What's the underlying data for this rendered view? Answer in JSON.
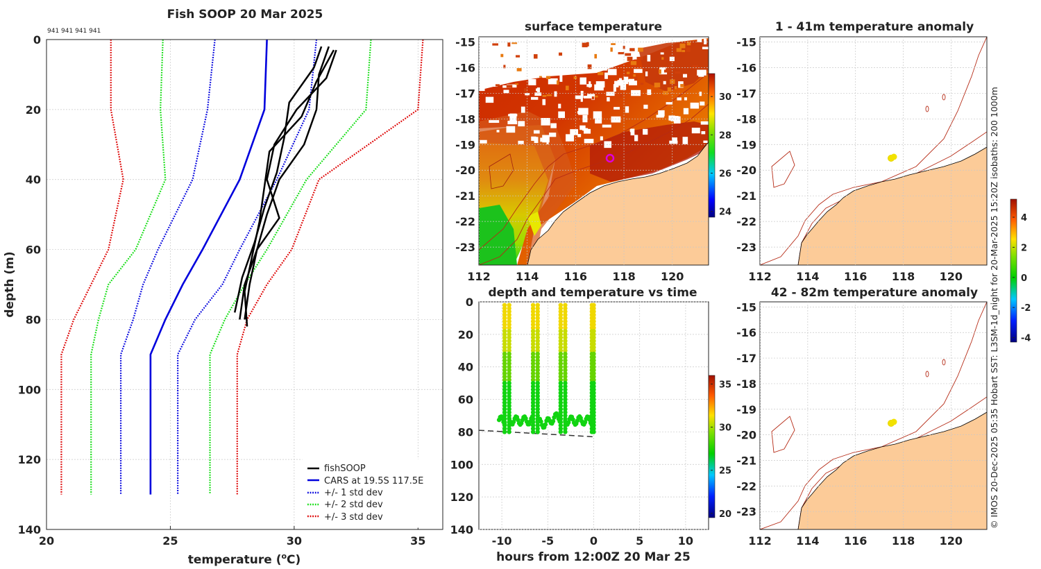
{
  "profile": {
    "title": "Fish SOOP 20 Mar 2025",
    "cast_ids": "941 941 941 941",
    "xlabel": "temperature (",
    "xlabel_sup": "o",
    "xlabel_unit": "C)",
    "ylabel": "depth (m)",
    "xticks": [
      "20",
      "25",
      "30",
      "35"
    ],
    "yticks": [
      "0",
      "20",
      "40",
      "60",
      "80",
      "100",
      "120",
      "140"
    ],
    "legend": [
      "fishSOOP",
      "CARS at 19.5S 117.5E",
      "+/- 1 std dev",
      "+/- 2 std dev",
      "+/- 3 std dev"
    ]
  },
  "sst": {
    "title": "surface temperature",
    "xticks": [
      "112",
      "114",
      "116",
      "118",
      "120"
    ],
    "yticks": [
      "-15",
      "-16",
      "-17",
      "-18",
      "-19",
      "-20",
      "-21",
      "-22",
      "-23"
    ],
    "cbar_ticks": [
      "30",
      "28",
      "26",
      "24"
    ]
  },
  "timeplot": {
    "title": "depth and temperature vs time",
    "xlabel": "hours from 12:00Z 20 Mar 25",
    "xticks": [
      "-10",
      "-5",
      "0",
      "5",
      "10"
    ],
    "yticks": [
      "0",
      "20",
      "40",
      "60",
      "80",
      "100",
      "120",
      "140"
    ],
    "cbar_ticks": [
      "35",
      "30",
      "25",
      "20"
    ]
  },
  "anom1": {
    "title": "1 - 41m temperature anomaly",
    "xticks": [
      "112",
      "114",
      "116",
      "118",
      "120"
    ],
    "yticks": [
      "-15",
      "-16",
      "-17",
      "-18",
      "-19",
      "-20",
      "-21",
      "-22",
      "-23"
    ]
  },
  "anom2": {
    "title": "42 - 82m temperature anomaly",
    "xticks": [
      "112",
      "114",
      "116",
      "118",
      "120"
    ],
    "yticks": [
      "-15",
      "-16",
      "-17",
      "-18",
      "-19",
      "-20",
      "-21",
      "-22",
      "-23"
    ]
  },
  "anom_cbar": {
    "ticks": [
      "4",
      "2",
      "0",
      "-2",
      "-4"
    ]
  },
  "credit": "© IMOS 20-Dec-2025 05:35 Hobart SST: L3SM-1d_night for 20-Mar-2025 15:20Z isobaths: 200  1000m",
  "colors": {
    "fish": "#000000",
    "cars": "#0000dd",
    "sd1": "#0000dd",
    "sd2": "#11dd11",
    "sd3": "#dd0000",
    "land": "#fccb98",
    "isobath": "#b52a15",
    "marker": "#dd00dd",
    "probe": "#f2e200"
  },
  "chart_data": [
    {
      "type": "line",
      "title": "Fish SOOP 20 Mar 2025",
      "xlabel": "temperature (oC)",
      "ylabel": "depth (m)",
      "xlim": [
        20,
        36
      ],
      "ylim": [
        0,
        140
      ],
      "y_inverted": true,
      "depths": [
        0,
        20,
        40,
        60,
        70,
        80,
        90,
        130
      ],
      "series": [
        {
          "name": "CARS at 19.5S 117.5E",
          "values": [
            28.9,
            28.8,
            27.8,
            26.3,
            25.5,
            24.8,
            24.2,
            24.2
          ]
        },
        {
          "name": "+/- 1 std dev (lower)",
          "values": [
            26.8,
            26.5,
            25.9,
            24.5,
            23.9,
            23.5,
            23.0,
            23.0
          ]
        },
        {
          "name": "+/- 1 std dev (upper)",
          "values": [
            30.9,
            30.6,
            29.3,
            27.8,
            27.1,
            26.0,
            25.3,
            25.3
          ]
        },
        {
          "name": "+/- 2 std dev (lower)",
          "values": [
            24.7,
            24.6,
            24.8,
            23.6,
            22.5,
            22.1,
            21.8,
            21.8
          ]
        },
        {
          "name": "+/- 2 std dev (upper)",
          "values": [
            33.1,
            32.9,
            30.5,
            28.9,
            28.0,
            27.2,
            26.6,
            26.6
          ]
        },
        {
          "name": "+/- 3 std dev (lower)",
          "values": [
            22.6,
            22.6,
            23.1,
            22.5,
            21.8,
            21.1,
            20.6,
            20.6
          ]
        },
        {
          "name": "+/- 3 std dev (upper)",
          "values": [
            35.2,
            35.0,
            31.0,
            29.9,
            28.9,
            28.1,
            27.7,
            27.7
          ]
        }
      ],
      "fishSOOP_profiles": [
        {
          "depth": [
            2,
            10,
            20,
            30,
            40,
            50,
            60,
            70,
            80
          ],
          "temp": [
            31.4,
            31.0,
            30.9,
            30.4,
            29.4,
            28.9,
            28.5,
            28.2,
            28.0
          ]
        },
        {
          "depth": [
            3,
            12,
            22,
            32,
            42,
            52,
            62,
            72,
            82
          ],
          "temp": [
            31.6,
            30.9,
            30.3,
            29.0,
            28.8,
            28.6,
            28.3,
            28.0,
            28.1
          ]
        },
        {
          "depth": [
            2,
            8,
            18,
            28,
            38,
            48,
            58,
            68,
            78
          ],
          "temp": [
            31.1,
            30.8,
            29.8,
            29.6,
            29.3,
            28.8,
            28.4,
            27.9,
            27.6
          ]
        },
        {
          "depth": [
            3,
            11,
            20,
            30,
            40,
            51,
            60,
            70,
            80
          ],
          "temp": [
            31.7,
            31.3,
            30.1,
            29.2,
            28.9,
            29.4,
            28.5,
            28.0,
            27.8
          ]
        }
      ]
    },
    {
      "type": "scatter",
      "title": "depth and temperature vs time",
      "xlabel": "hours from 12:00Z 20 Mar 25",
      "ylabel": "depth (m)",
      "xlim": [
        -12.5,
        12.5
      ],
      "ylim": [
        0,
        140
      ],
      "y_inverted": true,
      "colorbar": {
        "range": [
          19.5,
          36
        ],
        "ticks": [
          20,
          25,
          30,
          35
        ]
      },
      "dives": [
        {
          "start": -9.7,
          "end": -9.2,
          "max_depth": 81
        },
        {
          "start": -6.6,
          "end": -6.1,
          "max_depth": 80
        },
        {
          "start": -3.6,
          "end": -3.1,
          "max_depth": 81
        },
        {
          "start": -0.2,
          "end": 0.0,
          "max_depth": 81
        }
      ],
      "bottom_depth_line": {
        "from": -12.5,
        "to": 0.0,
        "depth": [
          79,
          83
        ]
      }
    },
    {
      "type": "heatmap",
      "title": "surface temperature",
      "xlim": [
        112,
        121.5
      ],
      "ylim": [
        -23.7,
        -14.8
      ],
      "colorbar": {
        "range": [
          23.7,
          31.2
        ],
        "ticks": [
          24,
          26,
          28,
          30
        ]
      },
      "marker": {
        "lon": 117.4,
        "lat": -19.5
      }
    },
    {
      "type": "heatmap",
      "title": "1 - 41m temperature anomaly",
      "xlim": [
        112,
        121.5
      ],
      "ylim": [
        -23.7,
        -14.8
      ],
      "colorbar": {
        "range": [
          -4.3,
          5.2
        ],
        "ticks": [
          -4,
          -2,
          0,
          2,
          4
        ]
      },
      "points": [
        {
          "lon": 117.4,
          "lat": -19.5,
          "anomaly": 2.5
        }
      ]
    },
    {
      "type": "heatmap",
      "title": "42 - 82m temperature anomaly",
      "xlim": [
        112,
        121.5
      ],
      "ylim": [
        -23.7,
        -14.8
      ],
      "points": [
        {
          "lon": 117.4,
          "lat": -19.5,
          "anomaly": 2.5
        }
      ]
    }
  ]
}
